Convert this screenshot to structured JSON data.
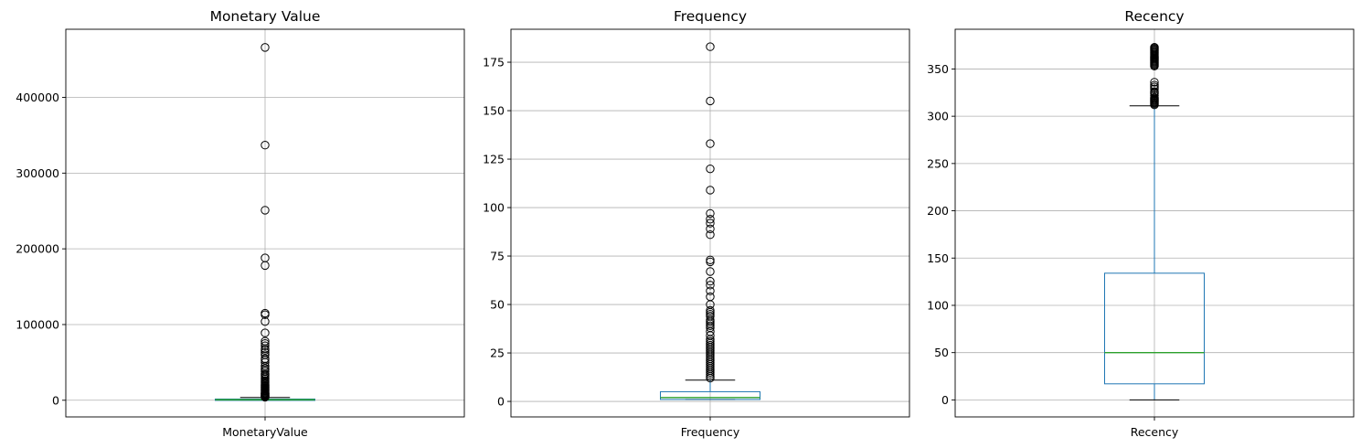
{
  "chart_data": [
    {
      "type": "box",
      "title": "Monetary Value",
      "category": "MonetaryValue",
      "ylim": [
        -22000,
        490000
      ],
      "yticks": [
        0,
        100000,
        200000,
        300000,
        400000
      ],
      "grid": true,
      "box": {
        "whisker_low": 0,
        "q1": 300,
        "median": 650,
        "q3": 1600,
        "whisker_high": 3600
      },
      "outliers": [
        4000,
        4500,
        5000,
        5500,
        6000,
        6500,
        7000,
        7500,
        8000,
        8500,
        9000,
        9500,
        10000,
        11000,
        12000,
        13000,
        14000,
        15000,
        16000,
        17000,
        18000,
        19000,
        20000,
        21500,
        23000,
        24500,
        26000,
        28000,
        30000,
        32000,
        33500,
        35000,
        38000,
        40000,
        42000,
        45000,
        50000,
        53000,
        55000,
        60000,
        63000,
        66000,
        68000,
        72000,
        75000,
        78000,
        89000,
        104000,
        113000,
        115000,
        178000,
        188000,
        251000,
        337000,
        466000
      ],
      "colors": {
        "box": "#1f77b4",
        "median": "#2ca02c",
        "whisker": "#000000"
      }
    },
    {
      "type": "box",
      "title": "Frequency",
      "category": "Frequency",
      "ylim": [
        -8,
        192
      ],
      "yticks": [
        0,
        25,
        50,
        75,
        100,
        125,
        150,
        175
      ],
      "grid": true,
      "box": {
        "whisker_low": 1,
        "q1": 1,
        "median": 2,
        "q3": 5,
        "whisker_high": 11
      },
      "outliers": [
        12,
        13,
        14,
        15,
        16,
        17,
        18,
        19,
        20,
        21,
        22,
        23,
        24,
        25,
        26,
        27,
        28,
        29,
        30,
        31,
        32,
        34,
        36,
        38,
        39,
        40,
        41,
        42,
        44,
        45,
        46,
        47,
        50,
        54,
        57,
        60,
        62,
        67,
        72,
        73,
        86,
        89,
        92,
        94,
        97,
        109,
        120,
        133,
        155,
        183
      ],
      "colors": {
        "box": "#1f77b4",
        "median": "#2ca02c",
        "whisker": "#000000"
      }
    },
    {
      "type": "box",
      "title": "Recency",
      "category": "Recency",
      "ylim": [
        -18,
        392
      ],
      "yticks": [
        0,
        50,
        100,
        150,
        200,
        250,
        300,
        350
      ],
      "grid": true,
      "box": {
        "whisker_low": 0,
        "q1": 17,
        "median": 50,
        "q3": 134,
        "whisker_high": 311
      },
      "outliers": [
        312,
        313,
        314,
        315,
        316,
        317,
        318,
        319,
        320,
        322,
        324,
        325,
        326,
        329,
        331,
        333,
        336,
        353,
        354,
        355,
        356,
        357,
        358,
        359,
        360,
        361,
        362,
        363,
        364,
        365,
        366,
        367,
        368,
        369,
        370,
        371,
        372,
        373
      ],
      "colors": {
        "box": "#1f77b4",
        "median": "#2ca02c",
        "whisker": "#000000"
      }
    }
  ]
}
